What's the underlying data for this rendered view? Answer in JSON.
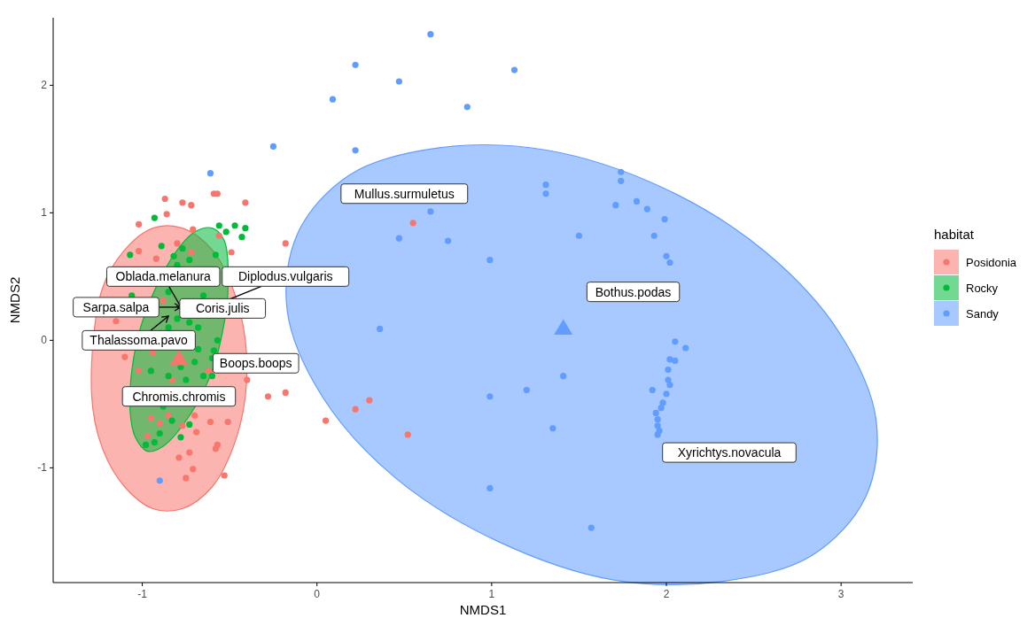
{
  "chart_data": {
    "type": "scatter",
    "xlabel": "NMDS1",
    "ylabel": "NMDS2",
    "legend_title": "habitat",
    "legend": "right",
    "xlim": [
      -1.51,
      3.41
    ],
    "ylim": [
      -1.9,
      2.53
    ],
    "xticks": [
      -1,
      0,
      1,
      2,
      3
    ],
    "yticks": [
      -1,
      0,
      1,
      2
    ],
    "series": [
      {
        "type": "area",
        "color": "#f8766d",
        "x": [
          -0.41,
          -0.48,
          -0.6,
          -0.77,
          -0.94,
          -1.1,
          -1.23,
          -1.29,
          -1.23,
          -1.1,
          -0.94,
          -0.77,
          -0.6,
          -0.48,
          -0.41
        ],
        "values": [
          0.0,
          0.4,
          0.71,
          0.88,
          0.88,
          0.71,
          0.4,
          -0.42,
          -0.84,
          -1.15,
          -1.32,
          -1.32,
          -1.15,
          -0.84,
          -0.44
        ]
      },
      {
        "type": "area",
        "color": "#00ba38",
        "x": [
          -0.6,
          -0.53,
          -0.51,
          -0.54,
          -0.6,
          -0.72,
          -0.88,
          -0.97,
          -1.04,
          -1.07,
          -1.06,
          -1.01,
          -0.92,
          -0.81,
          -0.7
        ],
        "values": [
          0.88,
          0.78,
          0.37,
          0.07,
          -0.24,
          -0.57,
          -0.83,
          -0.87,
          -0.76,
          -0.55,
          -0.24,
          0.1,
          0.42,
          0.69,
          0.85
        ]
      },
      {
        "type": "area",
        "color": "#619cff",
        "x": [
          3.14,
          2.83,
          2.32,
          1.7,
          1.04,
          0.45,
          0.03,
          -0.17,
          -0.11,
          0.19,
          0.7,
          1.32,
          1.99,
          2.57,
          2.99,
          3.2
        ],
        "values": [
          -1.23,
          -1.69,
          -1.89,
          -1.88,
          -1.58,
          -1.08,
          -0.44,
          0.23,
          0.84,
          1.3,
          1.51,
          1.49,
          1.19,
          0.69,
          0.06,
          -0.62
        ]
      },
      {
        "name": "Posidonia",
        "marker": "circle",
        "color": "#f8766d",
        "x": [
          -0.87,
          -0.77,
          -0.72,
          -0.59,
          -0.57,
          -0.41,
          -0.86,
          -1.02,
          -0.71,
          -0.56,
          -0.49,
          -0.18,
          -1.02,
          -0.92,
          -0.8,
          -0.72,
          -1.15,
          -1.1,
          -0.94,
          -1.02,
          -0.4,
          -0.28,
          -0.18,
          0.05,
          -0.61,
          -0.51,
          -0.69,
          -0.95,
          -0.97,
          -0.77,
          -0.57,
          -0.58,
          -0.73,
          -0.71,
          -0.75,
          -0.53,
          -0.79,
          0.55,
          0.3,
          0.22,
          0.52,
          -0.9,
          -0.85,
          -0.7,
          -0.83,
          -0.62,
          -0.88
        ],
        "values": [
          1.11,
          1.08,
          1.06,
          1.15,
          1.15,
          1.08,
          0.99,
          0.91,
          0.87,
          0.82,
          0.69,
          0.76,
          0.7,
          0.64,
          0.76,
          0.69,
          0.15,
          -0.13,
          -0.1,
          -0.24,
          -0.31,
          -0.44,
          -0.41,
          -0.63,
          -0.64,
          -0.64,
          -0.72,
          -0.61,
          -0.75,
          -0.67,
          -0.82,
          -0.85,
          -0.88,
          -1.01,
          -1.08,
          -1.06,
          -0.92,
          0.92,
          -0.47,
          -0.54,
          -0.74,
          -0.65,
          -0.59,
          -0.59,
          -0.31,
          -0.24,
          0.31
        ]
      },
      {
        "name": "Rocky",
        "marker": "circle",
        "color": "#00ba38",
        "x": [
          -0.93,
          -0.56,
          -0.52,
          -0.47,
          -0.41,
          -0.43,
          -1.07,
          -0.89,
          -0.82,
          -0.77,
          -0.58,
          -1.06,
          -0.59,
          -0.6,
          -0.98,
          -0.8,
          -0.73,
          -0.85,
          -0.68,
          -0.68,
          -0.57,
          -0.78,
          -0.7,
          -0.6,
          -0.95,
          -0.85,
          -0.75,
          -0.65,
          -0.88,
          -0.83,
          -0.73,
          -0.9,
          -0.78,
          -0.93,
          -0.85,
          -0.65,
          -0.8,
          -0.73
        ],
        "values": [
          0.96,
          0.9,
          0.85,
          0.9,
          0.88,
          0.81,
          0.67,
          0.74,
          0.66,
          0.72,
          0.67,
          0.35,
          -0.08,
          -0.28,
          -0.82,
          0.17,
          0.14,
          0.1,
          0.1,
          -0.07,
          0.0,
          -0.21,
          -0.17,
          -0.14,
          -0.24,
          -0.28,
          -0.31,
          -0.28,
          -0.52,
          -0.63,
          -0.66,
          -0.73,
          -0.76,
          -0.8,
          0.38,
          0.35,
          0.59,
          0.63
        ]
      },
      {
        "name": "Sandy",
        "marker": "circle",
        "color": "#619cff",
        "x": [
          0.65,
          0.22,
          0.47,
          1.13,
          0.09,
          0.86,
          -0.25,
          0.22,
          -0.61,
          0.65,
          0.47,
          0.75,
          0.99,
          1.31,
          1.31,
          1.74,
          1.74,
          1.71,
          1.83,
          1.89,
          1.99,
          1.5,
          1.93,
          2.0,
          2.02,
          0.36,
          1.41,
          1.2,
          0.99,
          1.35,
          0.99,
          1.57,
          2.05,
          2.11,
          2.02,
          2.05,
          2.01,
          2.01,
          2.02,
          2.0,
          1.92,
          1.98,
          1.97,
          1.94,
          1.95,
          1.95,
          1.96,
          1.95,
          -0.9
        ],
        "values": [
          2.4,
          2.16,
          2.03,
          2.12,
          1.89,
          1.83,
          1.52,
          1.49,
          1.31,
          1.01,
          0.8,
          0.78,
          0.63,
          1.22,
          1.15,
          1.32,
          1.25,
          1.06,
          1.09,
          1.03,
          0.95,
          0.82,
          0.82,
          0.66,
          0.61,
          0.09,
          -0.28,
          -0.39,
          -0.44,
          -0.69,
          -1.16,
          -1.47,
          -0.01,
          -0.06,
          -0.15,
          -0.16,
          -0.23,
          -0.31,
          -0.35,
          -0.42,
          -0.39,
          -0.49,
          -0.53,
          -0.57,
          -0.62,
          -0.67,
          -0.71,
          -0.74,
          -1.1
        ]
      },
      {
        "marker": "triangle",
        "color": "#f8766d",
        "x": [
          -0.79
        ],
        "values": [
          -0.15
        ]
      },
      {
        "marker": "triangle",
        "color": "#619cff",
        "x": [
          1.41
        ],
        "values": [
          0.09
        ]
      }
    ],
    "annotations": [
      "Mullus.surmuletus",
      "Bothus.podas",
      "Xyrichtys.novacula",
      "Boops.boops",
      "Chromis.chromis",
      "Oblada.melanura",
      "Sarpa.salpa",
      "Thalassoma.pavo",
      "Diplodus.vulgaris",
      "Coris.julis"
    ]
  }
}
